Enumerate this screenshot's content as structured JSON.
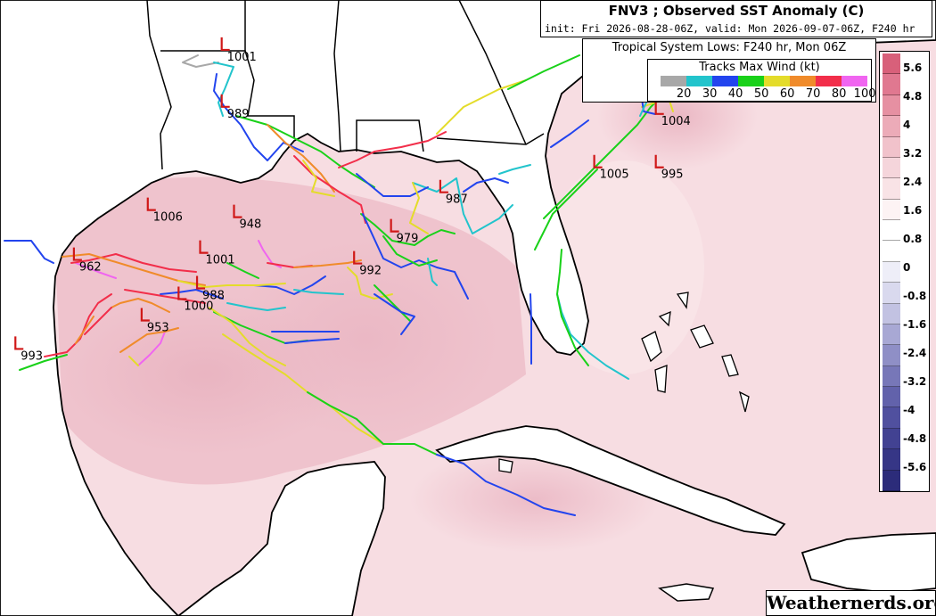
{
  "title": {
    "main": "FNV3 ; Observed SST Anomaly (C)",
    "subtitle": "init: Fri 2026-08-28-06Z, valid: Mon 2026-09-07-06Z, F240 hr"
  },
  "legend": {
    "title": "Tropical System Lows: F240 hr, Mon 06Z",
    "wind_title": "Tracks Max Wind (kt)",
    "bins": [
      {
        "label": "20",
        "color": "#a8a8a8"
      },
      {
        "label": "30",
        "color": "#22c4cc"
      },
      {
        "label": "40",
        "color": "#2244ee"
      },
      {
        "label": "50",
        "color": "#19d119"
      },
      {
        "label": "60",
        "color": "#e4dc2a"
      },
      {
        "label": "70",
        "color": "#f08b2a"
      },
      {
        "label": "80",
        "color": "#f22e4a"
      },
      {
        "label": "100",
        "color": "#f065f0"
      }
    ]
  },
  "colorbar": {
    "labels": [
      "5.6",
      "4.8",
      "4",
      "3.2",
      "2.4",
      "1.6",
      "0.8",
      "0",
      "-0.8",
      "-1.6",
      "-2.4",
      "-3.2",
      "-4",
      "-4.8",
      "-5.6"
    ],
    "colors": [
      "#d8607a",
      "#e07890",
      "#e690a2",
      "#ecabb8",
      "#f1c2cb",
      "#f5d5db",
      "#f9e3e6",
      "#fdf3f4",
      "#ffffff",
      "#ffffff",
      "#eeeef8",
      "#d9d9ee",
      "#c2c2e2",
      "#a8a8d4",
      "#8f8fc6",
      "#7777b8",
      "#6262ab",
      "#50509f",
      "#424292",
      "#363686",
      "#2c2c7a"
    ]
  },
  "lows": [
    {
      "label": "1001",
      "x": -93.2,
      "y": 32.9
    },
    {
      "label": "989",
      "x": -93.2,
      "y": 31.3
    },
    {
      "label": "1004",
      "x": -79.1,
      "y": 31.1
    },
    {
      "label": "995",
      "x": -79.1,
      "y": 29.6
    },
    {
      "label": "1005",
      "x": -81.1,
      "y": 29.6
    },
    {
      "label": "987",
      "x": -86.1,
      "y": 28.9
    },
    {
      "label": "1006",
      "x": -95.6,
      "y": 28.4
    },
    {
      "label": "948",
      "x": -92.8,
      "y": 28.2
    },
    {
      "label": "979",
      "x": -87.7,
      "y": 27.8
    },
    {
      "label": "1001",
      "x": -93.9,
      "y": 27.2
    },
    {
      "label": "992",
      "x": -88.9,
      "y": 26.9
    },
    {
      "label": "962",
      "x": -98.0,
      "y": 27.0
    },
    {
      "label": "988",
      "x": -94.0,
      "y": 26.2
    },
    {
      "label": "1000",
      "x": -94.6,
      "y": 25.9
    },
    {
      "label": "953",
      "x": -95.8,
      "y": 25.3
    },
    {
      "label": "993",
      "x": -99.9,
      "y": 24.5
    }
  ],
  "branding": "Weathernerds.org"
}
